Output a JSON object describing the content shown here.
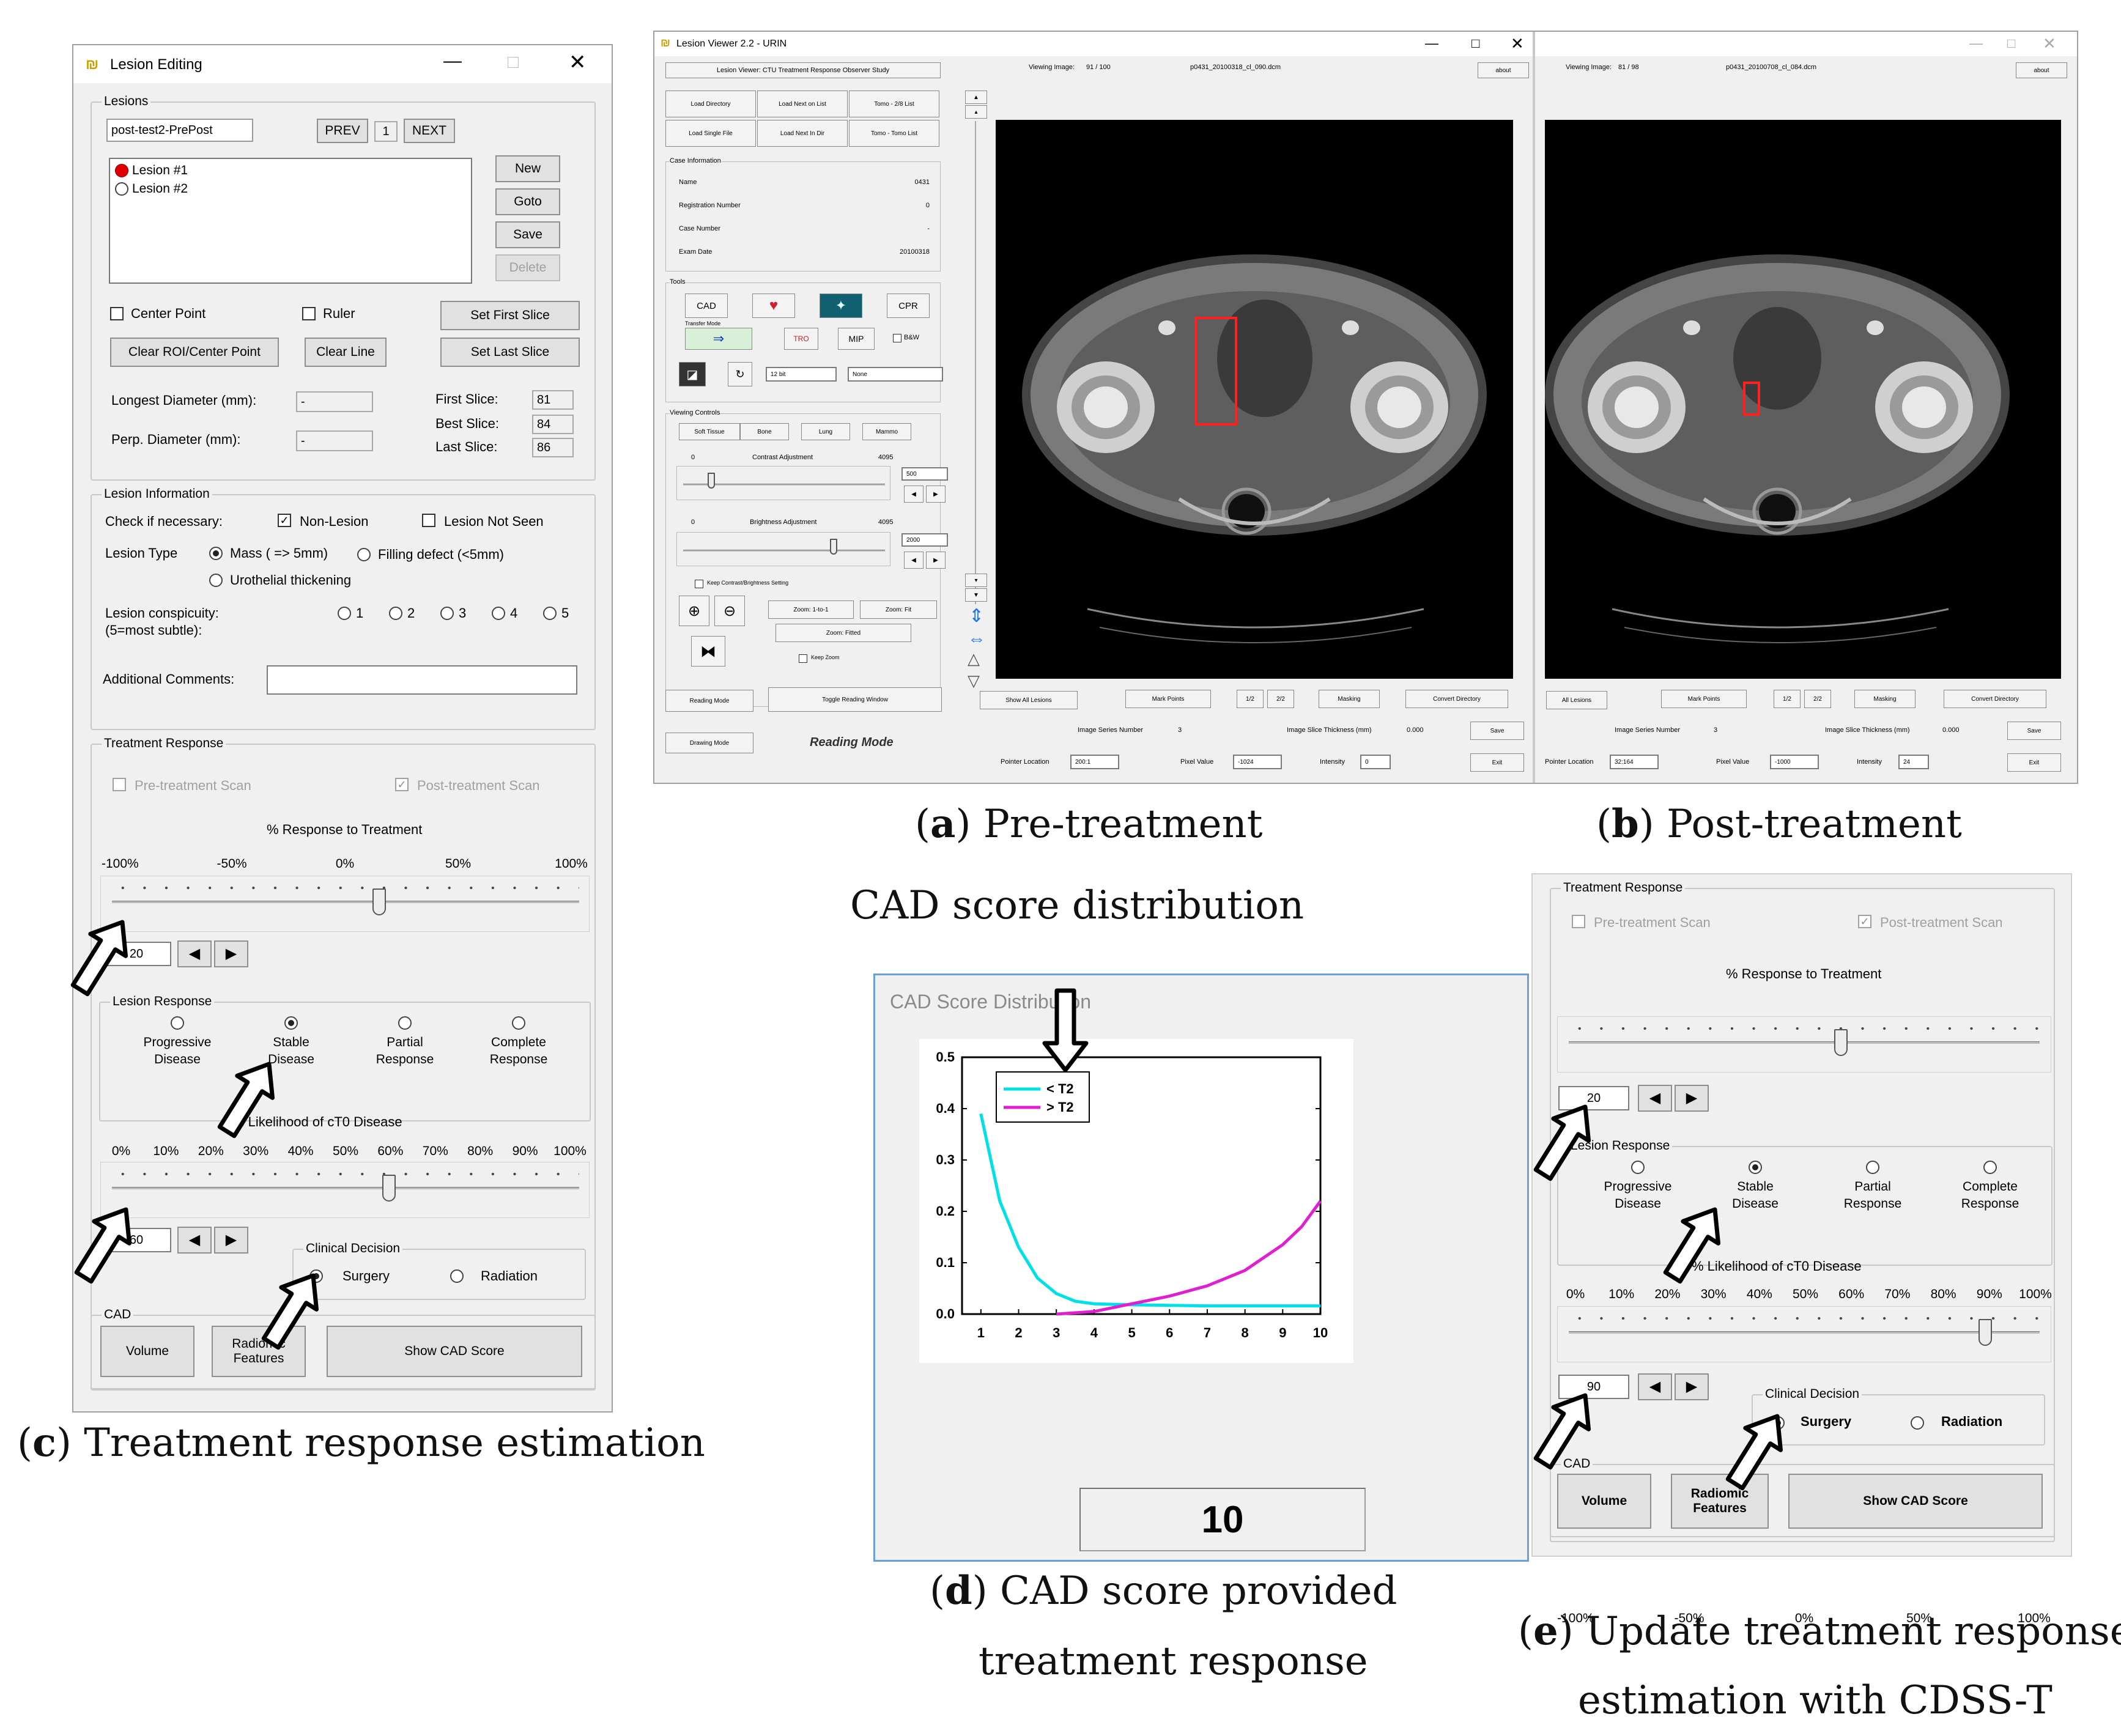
{
  "captions": {
    "a_letter": "a",
    "a_text": " Pre-treatment",
    "b_letter": "b",
    "b_text": " Post-treatment",
    "c_letter": "c",
    "c_text": " Treatment response estimation",
    "d_letter": "d",
    "d_line1": " CAD score provided",
    "d_line2": "treatment response",
    "e_letter": "e",
    "e_line1": " Update treatment response",
    "e_line2": "estimation with CDSS-T",
    "cad_dist_label": "CAD score distribution"
  },
  "lesion_editing": {
    "title": "Lesion Editing",
    "lesions_group": "Lesions",
    "lesion_name": "post-test2-PrePost",
    "prev": "PREV",
    "page": "1",
    "next": "NEXT",
    "list": [
      "Lesion #1",
      "Lesion #2"
    ],
    "buttons": {
      "new": "New",
      "goto": "Goto",
      "save": "Save",
      "delete": "Delete"
    },
    "center_point": "Center Point",
    "ruler": "Ruler",
    "set_first_slice": "Set First Slice",
    "set_last_slice": "Set Last Slice",
    "clear_roi": "Clear ROI/Center Point",
    "clear_line": "Clear Line",
    "longest_diameter_label": "Longest Diameter (mm):",
    "longest_diameter_value": "-",
    "perp_diameter_label": "Perp. Diameter (mm):",
    "perp_diameter_value": "-",
    "first_slice_label": "First Slice:",
    "first_slice_value": "81",
    "best_slice_label": "Best Slice:",
    "best_slice_value": "84",
    "last_slice_label": "Last Slice:",
    "last_slice_value": "86",
    "info_group": "Lesion Information",
    "check_label": "Check if necessary:",
    "non_lesion": "Non-Lesion",
    "not_seen": "Lesion Not Seen",
    "type_label": "Lesion Type",
    "mass": "Mass ( => 5mm)",
    "filling": "Filling defect (<5mm)",
    "urothelial": "Urothelial thickening",
    "conspicuity_label": "Lesion conspicuity:",
    "conspicuity_sub": "(5=most subtle):",
    "conspicuity_options": [
      "1",
      "2",
      "3",
      "4",
      "5"
    ],
    "comments_label": "Additional Comments:",
    "tr_group": "Treatment Response",
    "pre_scan": "Pre-treatment Scan",
    "post_scan": "Post-treatment Scan",
    "response_title": "% Response to Treatment",
    "response_ticks": [
      "-100%",
      "-50%",
      "0%",
      "50%",
      "100%"
    ],
    "response_value": "20",
    "lesion_response_group": "Lesion Response",
    "lesion_response_options": [
      {
        "l1": "Progressive",
        "l2": "Disease"
      },
      {
        "l1": "Stable",
        "l2": "Disease"
      },
      {
        "l1": "Partial",
        "l2": "Response"
      },
      {
        "l1": "Complete",
        "l2": "Response"
      }
    ],
    "likelihood_title": "% Likelihood of cT0 Disease",
    "likelihood_ticks": [
      "0%",
      "10%",
      "20%",
      "30%",
      "40%",
      "50%",
      "60%",
      "70%",
      "80%",
      "90%",
      "100%"
    ],
    "likelihood_value": "60",
    "clinical_group": "Clinical Decision",
    "surgery": "Surgery",
    "radiation": "Radiation",
    "cad_group": "CAD",
    "volume": "Volume",
    "radiomic_l1": "Radiomic",
    "radiomic_l2": "Features",
    "show_cad": "Show CAD Score"
  },
  "viewer": {
    "title": "Lesion Viewer 2.2 - URIN",
    "study": "Lesion Viewer: CTU Treatment Response Observer Study",
    "viewing_label": "Viewing Image:",
    "viewing_value_a": "91 / 100",
    "viewing_value_b": "81 / 98",
    "file_a": "p0431_20100318_cl_090.dcm",
    "file_b": "p0431_20100708_cl_084.dcm",
    "about": "about",
    "btns_left": [
      "Load Directory",
      "Load Next on List",
      "Tomo - 2/8 List",
      "Load Single File",
      "Load Next In Dir",
      "Tomo - Tomo List"
    ],
    "case_group": "Case Information",
    "case_rows": [
      {
        "k": "Name",
        "v": "0431"
      },
      {
        "k": "Registration Number",
        "v": "0"
      },
      {
        "k": "Case Number",
        "v": "-"
      },
      {
        "k": "Exam Date",
        "v": "20100318"
      }
    ],
    "tools_group": "Tools",
    "cad": "CAD",
    "cpr": "CPR",
    "transfer": "Transfer Mode",
    "mip": "MIP",
    "bw": "B&W",
    "sel1": "12 bit",
    "sel2": "None",
    "viewing_group": "Viewing Controls",
    "presets": [
      "Soft Tissue",
      "Bone",
      "Lung",
      "Mammo"
    ],
    "contrast_label": "Contrast Adjustment",
    "contrast_min": "0",
    "contrast_max": "4095",
    "contrast_val": "500",
    "bright_label": "Brightness Adjustment",
    "bright_min": "0",
    "bright_max": "4095",
    "bright_val": "2000",
    "keep_setting": "Keep Contrast/Brightness Setting",
    "zoom1": "Zoom: 1-to-1",
    "zoomfit": "Zoom: Fit",
    "zoomfitted": "Zoom: Fitted",
    "keepzoom": "Keep Zoom",
    "reading_mode_btn": "Reading Mode",
    "toggle_window": "Toggle Reading Window",
    "drawing_mode": "Drawing Mode",
    "reading_mode_label": "Reading Mode",
    "show_all": "Show All Lesions",
    "all_lesions": "All Lesions",
    "mark_points": "Mark Points",
    "b12": "1/2",
    "b22": "2/2",
    "masking": "Masking",
    "convert": "Convert Directory",
    "series_label": "Image Series Number",
    "series_val": "3",
    "slice_label": "Image Slice Thickness (mm)",
    "slice_val": "0.000",
    "save": "Save",
    "exit": "Exit",
    "pointer_label": "Pointer Location",
    "pointer_a": "200:1",
    "pointer_b": "32:164",
    "pixel_label": "Pixel Value",
    "pixel_a": "-1024",
    "pixel_b": "-1000",
    "intensity_label": "Intensity",
    "intensity_a": "0",
    "intensity_b": "24"
  },
  "cad_window": {
    "title": "CAD Score Distribution",
    "score": "10"
  },
  "chart_data": {
    "type": "line",
    "title": "",
    "xlabel": "",
    "ylabel": "",
    "xlim": [
      0.5,
      10
    ],
    "ylim": [
      0,
      0.5
    ],
    "xticks": [
      "1",
      "2",
      "3",
      "4",
      "5",
      "6",
      "7",
      "8",
      "9",
      "10"
    ],
    "yticks": [
      "0.0",
      "0.1",
      "0.2",
      "0.3",
      "0.4",
      "0.5"
    ],
    "legend": "top-left",
    "series": [
      {
        "name": "< T2",
        "color": "#00e0e8",
        "x": [
          1,
          1.5,
          2,
          2.5,
          3,
          3.5,
          4,
          5,
          6,
          7,
          8,
          9,
          10
        ],
        "y": [
          0.39,
          0.22,
          0.13,
          0.07,
          0.04,
          0.025,
          0.02,
          0.018,
          0.017,
          0.016,
          0.016,
          0.016,
          0.016
        ]
      },
      {
        "name": "> T2",
        "color": "#e020d0",
        "x": [
          3,
          4,
          5,
          6,
          7,
          8,
          9,
          9.5,
          10
        ],
        "y": [
          0.0,
          0.005,
          0.02,
          0.035,
          0.055,
          0.085,
          0.135,
          0.17,
          0.22
        ]
      }
    ]
  },
  "panel_e": {
    "tr_group": "Treatment Response",
    "pre_scan": "Pre-treatment Scan",
    "post_scan": "Post-treatment Scan",
    "response_title": "% Response to Treatment",
    "response_ticks": [
      "-100%",
      "-50%",
      "0%",
      "50%",
      "100%"
    ],
    "response_value": "20",
    "lesion_response_group": "Lesion Response",
    "likelihood_title": "% Likelihood of cT0 Disease",
    "likelihood_ticks": [
      "0%",
      "10%",
      "20%",
      "30%",
      "40%",
      "50%",
      "60%",
      "70%",
      "80%",
      "90%",
      "100%"
    ],
    "likelihood_value": "90",
    "clinical_group": "Clinical Decision",
    "surgery": "Surgery",
    "radiation": "Radiation",
    "cad_group": "CAD",
    "volume": "Volume",
    "radiomic_l1": "Radiomic",
    "radiomic_l2": "Features",
    "show_cad": "Show CAD Score"
  },
  "colors": {
    "window_bg": "#f0f0f0",
    "lesion_marker": "#e00000",
    "roi_box": "#ff2020"
  }
}
